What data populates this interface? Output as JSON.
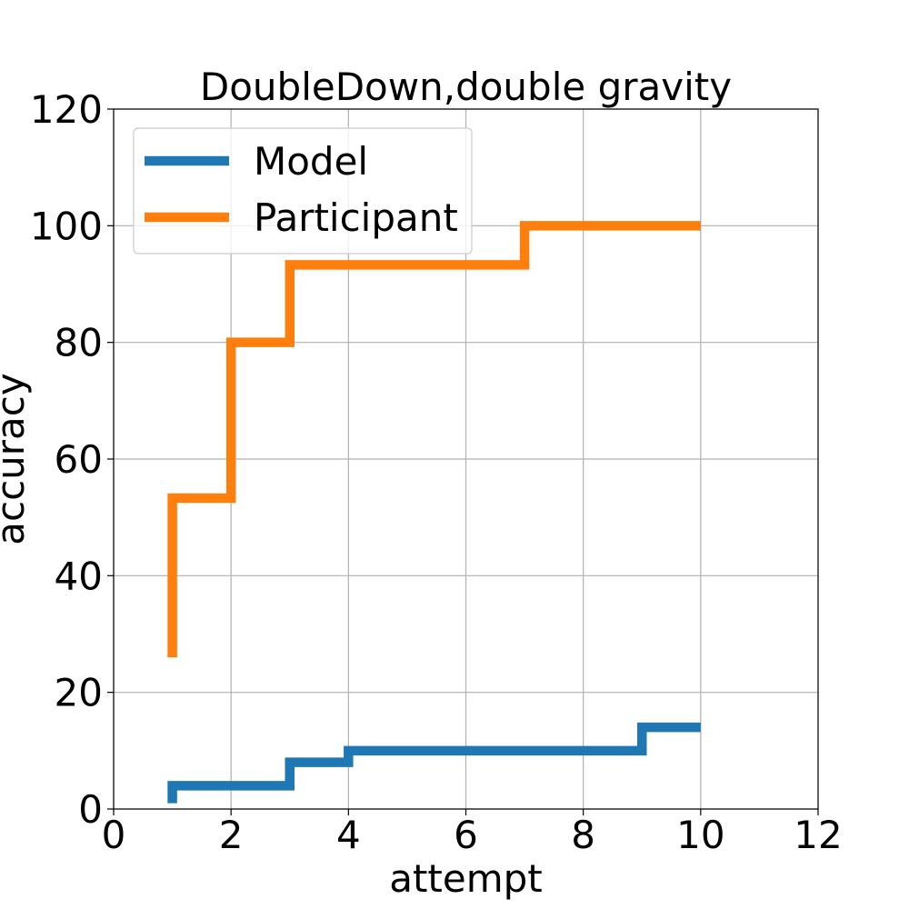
{
  "chart_data": {
    "type": "line",
    "drawstyle": "steps-post",
    "title": "DoubleDown,double gravity",
    "xlabel": "attempt",
    "ylabel": "accuracy",
    "xlim": [
      0,
      12
    ],
    "ylim": [
      0,
      120
    ],
    "xticks": [
      0,
      2,
      4,
      6,
      8,
      10,
      12
    ],
    "yticks": [
      0,
      20,
      40,
      60,
      80,
      100,
      120
    ],
    "grid": true,
    "legend_position": "top-left",
    "series": [
      {
        "name": "Model",
        "color": "#1f77b4",
        "x": [
          1,
          2,
          3,
          4,
          5,
          6,
          7,
          8,
          9,
          10
        ],
        "values": [
          4,
          4,
          8,
          10,
          10,
          10,
          10,
          10,
          14,
          14
        ]
      },
      {
        "name": "Participant",
        "color": "#ff7f0e",
        "x": [
          1,
          2,
          3,
          4,
          5,
          6,
          7,
          8,
          9,
          10
        ],
        "values": [
          53.3,
          80,
          93.3,
          93.3,
          93.3,
          93.3,
          100,
          100,
          100,
          100
        ]
      }
    ],
    "start_values": [
      1,
      26
    ]
  }
}
